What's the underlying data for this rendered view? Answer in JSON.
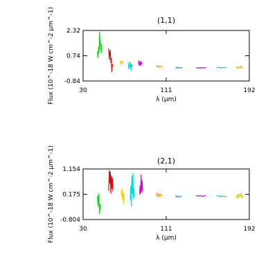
{
  "chart_data": [
    {
      "type": "line",
      "title": "(1,1)",
      "xlabel": "λ (μm)",
      "ylabel": "Flux (10^-18 W cm^-2 μm^-1)",
      "xlim": [
        30,
        192
      ],
      "ylim": [
        -0.84,
        2.32
      ],
      "xticks": [
        "30",
        "111",
        "192"
      ],
      "yticks": [
        "-0.84",
        "0.74",
        "2.32"
      ],
      "series": [
        {
          "color": "#00dd00",
          "points": [
            [
              44,
              1.0
            ],
            [
              44.5,
              0.6
            ],
            [
              45,
              1.3
            ],
            [
              45.5,
              0.9
            ],
            [
              46,
              2.25
            ],
            [
              46.5,
              1.6
            ],
            [
              47,
              1.1
            ],
            [
              47.5,
              1.5
            ],
            [
              48,
              0.9
            ]
          ]
        },
        {
          "color": "#ee0000",
          "points": [
            [
              55,
              1.2
            ],
            [
              55.5,
              0.5
            ],
            [
              56,
              0.9
            ],
            [
              56.5,
              1.1
            ],
            [
              57,
              0.3
            ],
            [
              57.5,
              0.6
            ],
            [
              58,
              -0.3
            ],
            [
              58.5,
              0.2
            ],
            [
              59,
              0.1
            ]
          ]
        },
        {
          "color": "#dddd00",
          "points": [
            [
              66,
              0.3
            ],
            [
              66.5,
              0.4
            ],
            [
              67,
              0.2
            ],
            [
              67.5,
              0.45
            ],
            [
              68,
              0.25
            ],
            [
              68.5,
              0.35
            ],
            [
              69,
              0.3
            ]
          ]
        },
        {
          "color": "#00dddd",
          "points": [
            [
              74,
              0.2
            ],
            [
              74.5,
              -0.1
            ],
            [
              75,
              0.35
            ],
            [
              75.5,
              0.05
            ],
            [
              76,
              0.3
            ],
            [
              76.5,
              -0.2
            ],
            [
              77,
              0.15
            ],
            [
              77.5,
              0.1
            ],
            [
              78,
              0.2
            ]
          ]
        },
        {
          "color": "#dd00dd",
          "points": [
            [
              84,
              0.2
            ],
            [
              84.5,
              0.45
            ],
            [
              85,
              0.1
            ],
            [
              85.5,
              0.35
            ],
            [
              86,
              0.15
            ],
            [
              86.5,
              0.4
            ],
            [
              87,
              0.2
            ],
            [
              87.5,
              0.3
            ]
          ]
        },
        {
          "color": "#ff9900",
          "points": [
            [
              101,
              0.05
            ],
            [
              102,
              0.12
            ],
            [
              103,
              0.02
            ],
            [
              104,
              0.1
            ],
            [
              105,
              0.05
            ],
            [
              106,
              0.08
            ],
            [
              107,
              0.04
            ]
          ]
        },
        {
          "color": "#3399ff",
          "points": [
            [
              120,
              -0.02
            ],
            [
              121,
              0.04
            ],
            [
              122,
              -0.05
            ],
            [
              123,
              0.02
            ],
            [
              124,
              -0.03
            ],
            [
              125,
              0.01
            ],
            [
              126,
              -0.02
            ],
            [
              127,
              0.0
            ]
          ]
        },
        {
          "color": "#cc00cc",
          "points": [
            [
              140,
              -0.02
            ],
            [
              142,
              0.0
            ],
            [
              144,
              -0.04
            ],
            [
              146,
              0.01
            ],
            [
              148,
              -0.02
            ],
            [
              150,
              -0.01
            ]
          ]
        },
        {
          "color": "#00cccc",
          "points": [
            [
              160,
              0.0
            ],
            [
              162,
              0.02
            ],
            [
              164,
              -0.03
            ],
            [
              166,
              0.01
            ],
            [
              168,
              -0.01
            ],
            [
              170,
              0.0
            ]
          ]
        },
        {
          "color": "#cccc00",
          "points": [
            [
              179,
              -0.01
            ],
            [
              180,
              0.05
            ],
            [
              181,
              -0.05
            ],
            [
              182,
              0.03
            ],
            [
              183,
              -0.02
            ],
            [
              184,
              0.1
            ],
            [
              185,
              -0.03
            ],
            [
              186,
              0.02
            ]
          ]
        }
      ]
    },
    {
      "type": "line",
      "title": "(2,1)",
      "xlabel": "λ (μm)",
      "ylabel": "Flux (10^-18 W cm^-2 μm^-1)",
      "xlim": [
        30,
        192
      ],
      "ylim": [
        -0.804,
        1.154
      ],
      "xticks": [
        "30",
        "111",
        "192"
      ],
      "yticks": [
        "-0.804",
        "0.175",
        "1.154"
      ],
      "series": [
        {
          "color": "#00dd00",
          "points": [
            [
              44,
              0.1
            ],
            [
              44.5,
              -0.3
            ],
            [
              45,
              0.2
            ],
            [
              45.5,
              -0.1
            ],
            [
              46,
              -0.6
            ],
            [
              46.5,
              -0.2
            ],
            [
              47,
              -0.4
            ]
          ]
        },
        {
          "color": "#ee0000",
          "points": [
            [
              55,
              0.3
            ],
            [
              55.5,
              1.1
            ],
            [
              56,
              0.6
            ],
            [
              56.5,
              1.05
            ],
            [
              57,
              0.2
            ],
            [
              57.5,
              0.9
            ],
            [
              58,
              0.4
            ],
            [
              58.5,
              0.8
            ],
            [
              59,
              0.3
            ]
          ]
        },
        {
          "color": "#dddd00",
          "points": [
            [
              67,
              0.3
            ],
            [
              67.5,
              0.1
            ],
            [
              68,
              0.4
            ],
            [
              68.5,
              -0.05
            ],
            [
              69,
              0.2
            ],
            [
              69.5,
              -0.2
            ],
            [
              70,
              0.25
            ]
          ]
        },
        {
          "color": "#00dddd",
          "points": [
            [
              76,
              -0.05
            ],
            [
              76.5,
              0.5
            ],
            [
              77,
              -0.3
            ],
            [
              77.5,
              0.9
            ],
            [
              78,
              0.2
            ],
            [
              78.5,
              1.0
            ],
            [
              79,
              0.0
            ],
            [
              79.5,
              0.4
            ],
            [
              80,
              0.1
            ]
          ]
        },
        {
          "color": "#dd00dd",
          "points": [
            [
              85,
              0.15
            ],
            [
              85.5,
              0.5
            ],
            [
              86,
              0.2
            ],
            [
              86.5,
              0.95
            ],
            [
              87,
              0.25
            ],
            [
              87.5,
              0.7
            ],
            [
              88,
              0.3
            ]
          ]
        },
        {
          "color": "#ff9900",
          "points": [
            [
              101,
              0.12
            ],
            [
              102,
              0.22
            ],
            [
              103,
              0.08
            ],
            [
              104,
              0.18
            ],
            [
              105,
              0.1
            ],
            [
              106,
              0.16
            ],
            [
              107,
              0.12
            ]
          ]
        },
        {
          "color": "#3399ff",
          "points": [
            [
              120,
              0.08
            ],
            [
              121,
              0.12
            ],
            [
              122,
              0.06
            ],
            [
              123,
              0.1
            ],
            [
              124,
              0.07
            ],
            [
              125,
              0.11
            ],
            [
              126,
              0.08
            ]
          ]
        },
        {
          "color": "#cc00cc",
          "points": [
            [
              140,
              0.12
            ],
            [
              142,
              0.1
            ],
            [
              144,
              0.13
            ],
            [
              146,
              0.09
            ],
            [
              148,
              0.12
            ],
            [
              150,
              0.1
            ]
          ]
        },
        {
          "color": "#00cccc",
          "points": [
            [
              160,
              0.1
            ],
            [
              162,
              0.12
            ],
            [
              164,
              0.08
            ],
            [
              166,
              0.11
            ],
            [
              168,
              0.09
            ],
            [
              170,
              0.1
            ]
          ]
        },
        {
          "color": "#cccc00",
          "points": [
            [
              179,
              0.05
            ],
            [
              180,
              0.15
            ],
            [
              181,
              0.02
            ],
            [
              182,
              0.18
            ],
            [
              183,
              0.08
            ],
            [
              184,
              0.2
            ],
            [
              185,
              0.04
            ],
            [
              186,
              0.12
            ]
          ]
        }
      ]
    }
  ]
}
